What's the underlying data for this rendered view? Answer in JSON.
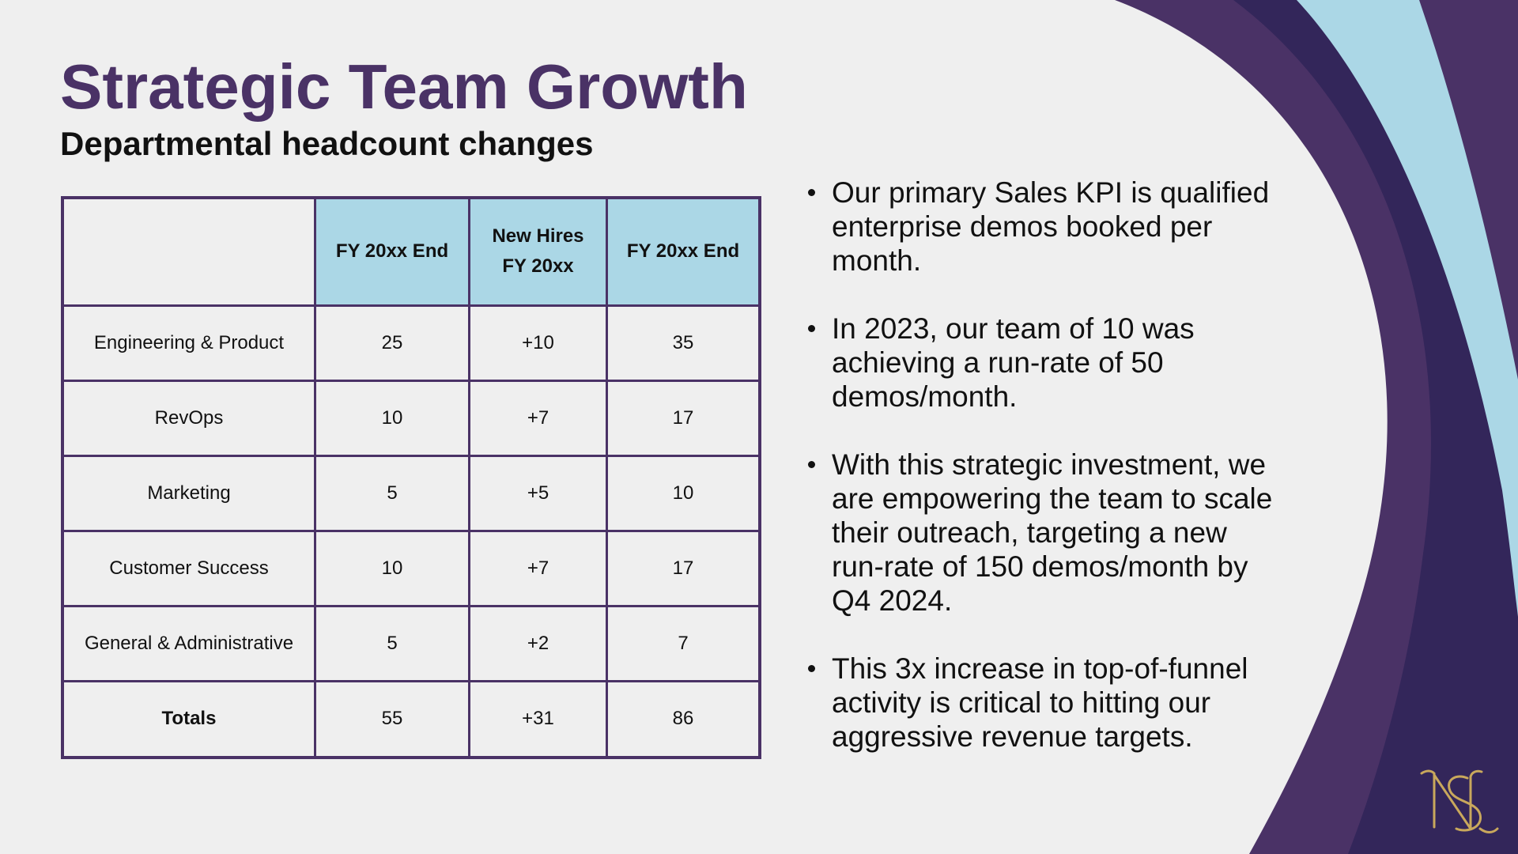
{
  "slide": {
    "title": "Strategic Team Growth",
    "subtitle": "Departmental headcount changes"
  },
  "table": {
    "headers": [
      "",
      "FY 20xx End",
      "New Hires FY 20xx",
      "FY 20xx End"
    ],
    "header_lines": {
      "col1": "FY 20xx End",
      "col2_line1": "New Hires",
      "col2_line2": "FY 20xx",
      "col3": "FY 20xx End"
    },
    "rows": [
      {
        "department": "Engineering & Product",
        "start": "25",
        "new_hires": "+10",
        "end": "35"
      },
      {
        "department": "RevOps",
        "start": "10",
        "new_hires": "+7",
        "end": "17"
      },
      {
        "department": "Marketing",
        "start": "5",
        "new_hires": "+5",
        "end": "10"
      },
      {
        "department": "Customer Success",
        "start": "10",
        "new_hires": "+7",
        "end": "17"
      },
      {
        "department": "General & Administrative",
        "start": "5",
        "new_hires": "+2",
        "end": "7"
      }
    ],
    "totals": {
      "label": "Totals",
      "start": "55",
      "new_hires": "+31",
      "end": "86"
    }
  },
  "bullets": [
    "Our primary Sales KPI is qualified enterprise demos booked per month.",
    "In 2023, our team of 10 was achieving a run-rate of 50 demos/month.",
    "With this strategic investment, we are empowering the team to scale their outreach, targeting a new run-rate of 150 demos/month by Q4 2024.",
    "This 3x increase in top-of-funnel activity is critical to hitting our aggressive revenue targets."
  ],
  "logo": {
    "name": "ns-monogram-logo",
    "letters": "NS"
  },
  "colors": {
    "brand_purple": "#4a3266",
    "deep_purple": "#33265a",
    "light_blue": "#abd7e6",
    "background": "#efefef",
    "gold": "#c9a85c"
  }
}
